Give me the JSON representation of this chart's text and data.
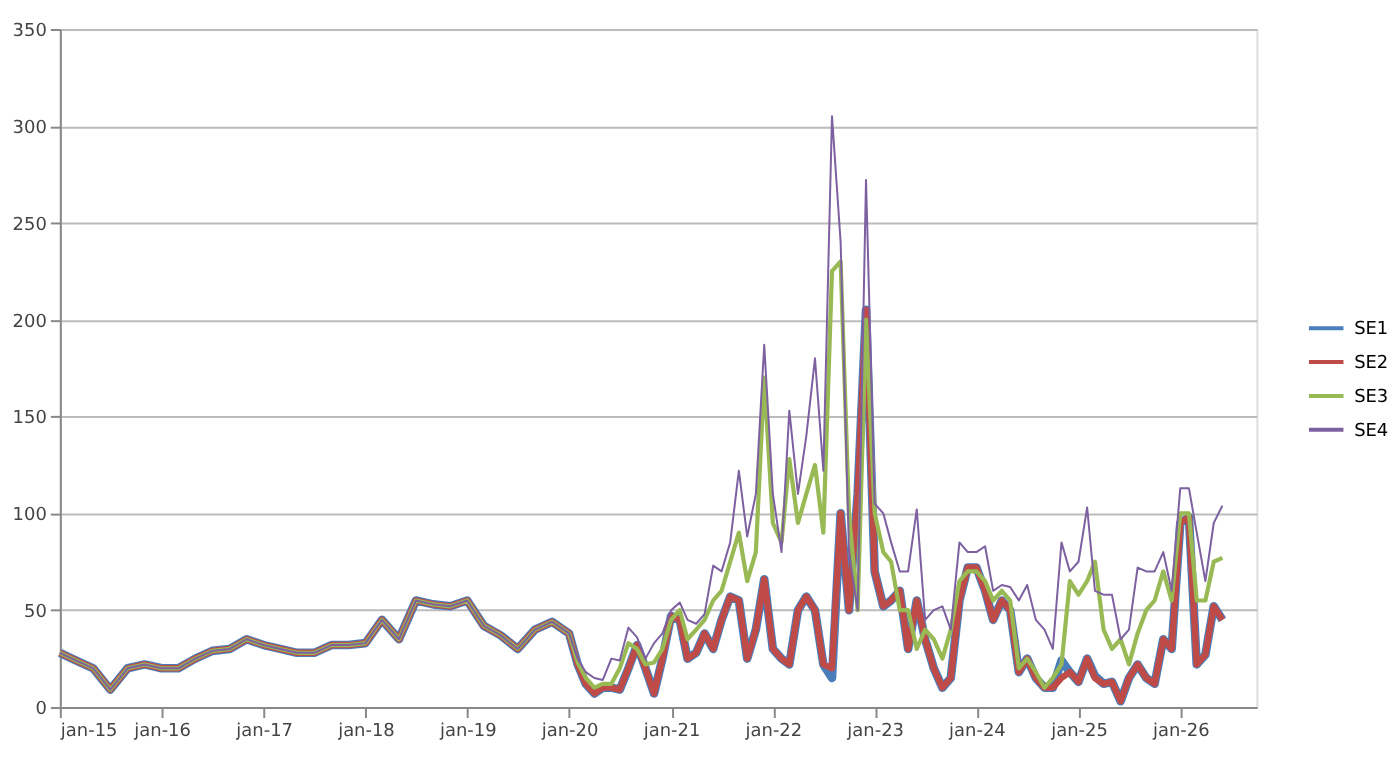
{
  "chart_data": {
    "type": "line",
    "x": [
      "2015-01",
      "2015-03",
      "2015-05",
      "2015-07",
      "2015-09",
      "2015-11",
      "2016-01",
      "2016-03",
      "2016-05",
      "2016-07",
      "2016-09",
      "2016-11",
      "2017-01",
      "2017-03",
      "2017-05",
      "2017-07",
      "2017-09",
      "2017-11",
      "2018-01",
      "2018-03",
      "2018-05",
      "2018-07",
      "2018-09",
      "2018-11",
      "2019-01",
      "2019-03",
      "2019-05",
      "2019-07",
      "2019-09",
      "2019-11",
      "2020-01",
      "2020-02",
      "2020-03",
      "2020-04",
      "2020-05",
      "2020-06",
      "2020-07",
      "2020-08",
      "2020-09",
      "2020-10",
      "2020-11",
      "2020-12",
      "2021-01",
      "2021-02",
      "2021-03",
      "2021-04",
      "2021-05",
      "2021-06",
      "2021-07",
      "2021-08",
      "2021-09",
      "2021-10",
      "2021-11",
      "2021-12",
      "2022-01",
      "2022-02",
      "2022-03",
      "2022-04",
      "2022-05",
      "2022-06",
      "2022-07",
      "2022-08",
      "2022-09",
      "2022-10",
      "2022-11",
      "2022-12",
      "2023-01",
      "2023-02",
      "2023-03",
      "2023-04",
      "2023-05",
      "2023-06",
      "2023-07",
      "2023-08",
      "2023-09",
      "2023-10",
      "2023-11",
      "2023-12",
      "2024-01",
      "2024-02",
      "2024-03",
      "2024-04",
      "2024-05",
      "2024-06",
      "2024-07",
      "2024-08",
      "2024-09",
      "2024-10",
      "2024-11",
      "2024-12",
      "2025-01",
      "2025-02",
      "2025-03",
      "2025-04",
      "2025-05",
      "2025-06",
      "2025-07",
      "2025-08",
      "2025-09",
      "2025-10",
      "2025-11",
      "2025-12",
      "2026-01",
      "2026-02",
      "2026-03",
      "2026-04",
      "2026-05",
      "2026-06"
    ],
    "series": [
      {
        "name": "SE1",
        "color": "#4a7ebb",
        "values": [
          28,
          24,
          20,
          9,
          20,
          22,
          20,
          20,
          25,
          29,
          30,
          35,
          32,
          30,
          28,
          28,
          32,
          32,
          33,
          45,
          35,
          55,
          53,
          52,
          55,
          42,
          37,
          30,
          40,
          44,
          38,
          22,
          12,
          7,
          10,
          10,
          9,
          20,
          32,
          20,
          7,
          25,
          47,
          45,
          25,
          28,
          38,
          30,
          45,
          57,
          55,
          25,
          40,
          66,
          30,
          25,
          22,
          50,
          57,
          50,
          22,
          15,
          100,
          50,
          110,
          205,
          70,
          52,
          55,
          60,
          30,
          55,
          35,
          20,
          10,
          15,
          55,
          72,
          72,
          60,
          45,
          55,
          50,
          18,
          25,
          15,
          10,
          10,
          24,
          18,
          13,
          25,
          16,
          12,
          13,
          3,
          15,
          22,
          15,
          12,
          35,
          30,
          95,
          98,
          22,
          27,
          52,
          45
        ]
      },
      {
        "name": "SE2",
        "color": "#be4b48",
        "values": [
          28,
          24,
          20,
          9,
          20,
          22,
          20,
          20,
          25,
          29,
          30,
          35,
          32,
          30,
          28,
          28,
          32,
          32,
          33,
          45,
          35,
          55,
          53,
          52,
          55,
          42,
          37,
          30,
          40,
          44,
          38,
          22,
          12,
          7,
          10,
          10,
          9,
          20,
          32,
          20,
          7,
          25,
          47,
          45,
          25,
          28,
          38,
          30,
          45,
          57,
          55,
          25,
          40,
          66,
          30,
          25,
          22,
          50,
          57,
          50,
          22,
          20,
          100,
          50,
          110,
          205,
          70,
          52,
          55,
          60,
          30,
          55,
          35,
          20,
          10,
          15,
          55,
          72,
          72,
          60,
          45,
          55,
          50,
          18,
          25,
          15,
          10,
          10,
          15,
          18,
          13,
          25,
          15,
          12,
          13,
          3,
          15,
          22,
          15,
          12,
          35,
          30,
          95,
          98,
          22,
          27,
          52,
          45
        ]
      },
      {
        "name": "SE3",
        "color": "#98b954",
        "values": [
          28,
          24,
          20,
          9,
          20,
          22,
          20,
          20,
          25,
          29,
          30,
          35,
          32,
          30,
          28,
          28,
          32,
          32,
          33,
          45,
          35,
          55,
          53,
          52,
          55,
          42,
          37,
          30,
          40,
          44,
          38,
          23,
          15,
          10,
          12,
          12,
          20,
          33,
          30,
          22,
          23,
          30,
          45,
          50,
          35,
          40,
          45,
          55,
          60,
          75,
          90,
          65,
          80,
          170,
          95,
          85,
          128,
          95,
          110,
          125,
          90,
          225,
          230,
          100,
          50,
          200,
          100,
          80,
          75,
          50,
          50,
          30,
          40,
          35,
          25,
          40,
          65,
          70,
          70,
          65,
          55,
          60,
          55,
          20,
          25,
          18,
          10,
          15,
          22,
          65,
          58,
          65,
          75,
          40,
          30,
          35,
          22,
          38,
          50,
          55,
          70,
          55,
          100,
          100,
          55,
          55,
          75,
          77
        ]
      },
      {
        "name": "SE4",
        "color": "#7d60a0",
        "values": [
          28,
          24,
          20,
          9,
          20,
          22,
          20,
          20,
          25,
          29,
          30,
          35,
          32,
          30,
          28,
          28,
          32,
          32,
          33,
          45,
          35,
          55,
          53,
          52,
          55,
          42,
          37,
          30,
          40,
          44,
          38,
          25,
          18,
          15,
          14,
          25,
          24,
          41,
          36,
          25,
          33,
          38,
          50,
          54,
          45,
          43,
          48,
          73,
          70,
          85,
          122,
          88,
          110,
          187,
          110,
          80,
          153,
          110,
          140,
          180,
          122,
          305,
          240,
          80,
          50,
          272,
          105,
          100,
          85,
          70,
          70,
          102,
          45,
          50,
          52,
          40,
          85,
          80,
          80,
          83,
          60,
          63,
          62,
          55,
          63,
          45,
          40,
          30,
          85,
          70,
          75,
          103,
          60,
          58,
          58,
          35,
          40,
          72,
          70,
          70,
          80,
          60,
          113,
          113,
          90,
          65,
          95,
          104
        ]
      }
    ],
    "xlim": [
      "2015-01",
      "2026-10"
    ],
    "xticks": [
      {
        "value": "2015-01",
        "label": "jan-15"
      },
      {
        "value": "2016-01",
        "label": "jan-16"
      },
      {
        "value": "2017-01",
        "label": "jan-17"
      },
      {
        "value": "2018-01",
        "label": "jan-18"
      },
      {
        "value": "2019-01",
        "label": "jan-19"
      },
      {
        "value": "2020-01",
        "label": "jan-20"
      },
      {
        "value": "2021-01",
        "label": "jan-21"
      },
      {
        "value": "2022-01",
        "label": "jan-22"
      },
      {
        "value": "2023-01",
        "label": "jan-23"
      },
      {
        "value": "2024-01",
        "label": "jan-24"
      },
      {
        "value": "2025-01",
        "label": "jan-25"
      },
      {
        "value": "2026-01",
        "label": "jan-26"
      }
    ],
    "ylim": [
      0,
      350
    ],
    "yticks": [
      0,
      50,
      100,
      150,
      200,
      250,
      300,
      350
    ],
    "grid": "y",
    "legend": "right",
    "marker": "none",
    "line_style": "solid"
  }
}
